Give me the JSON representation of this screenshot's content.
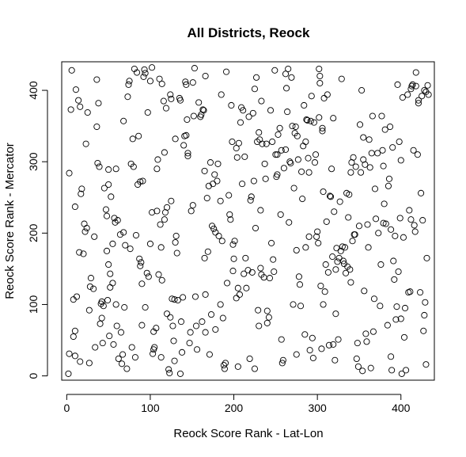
{
  "chart_data": {
    "type": "scatter",
    "title": "All Districts, Reock",
    "xlabel": "Reock Score Rank - Lat-Lon",
    "ylabel": "Reock Score Rank - Mercator",
    "xlim": [
      -6,
      440
    ],
    "ylim": [
      -6,
      440
    ],
    "xticks": [
      0,
      100,
      200,
      300,
      400
    ],
    "yticks": [
      0,
      100,
      200,
      300,
      400
    ],
    "marker": "open-circle",
    "grid": false,
    "legend": "none",
    "colors": {
      "points": "#000000",
      "axes": "#000000",
      "background": "#ffffff"
    },
    "points": [
      [
        2,
        3
      ],
      [
        3,
        31
      ],
      [
        3,
        284
      ],
      [
        5,
        373
      ],
      [
        6,
        428
      ],
      [
        8,
        107
      ],
      [
        8,
        55
      ],
      [
        10,
        63
      ],
      [
        10,
        28
      ],
      [
        10,
        237
      ],
      [
        11,
        401
      ],
      [
        12,
        111
      ],
      [
        14,
        386
      ],
      [
        15,
        173
      ],
      [
        16,
        20
      ],
      [
        16,
        377
      ],
      [
        17,
        255
      ],
      [
        18,
        262
      ],
      [
        20,
        171
      ],
      [
        21,
        213
      ],
      [
        22,
        202
      ],
      [
        23,
        325
      ],
      [
        24,
        207
      ],
      [
        25,
        369
      ],
      [
        27,
        18
      ],
      [
        27,
        92
      ],
      [
        28,
        125
      ],
      [
        29,
        137
      ],
      [
        32,
        122
      ],
      [
        33,
        195
      ],
      [
        34,
        40
      ],
      [
        36,
        415
      ],
      [
        36,
        349
      ],
      [
        37,
        298
      ],
      [
        38,
        382
      ],
      [
        39,
        293
      ],
      [
        40,
        73
      ],
      [
        41,
        101
      ],
      [
        42,
        104
      ],
      [
        42,
        81
      ],
      [
        43,
        46
      ],
      [
        44,
        98
      ],
      [
        45,
        263
      ],
      [
        47,
        233
      ],
      [
        48,
        224
      ],
      [
        48,
        175
      ],
      [
        49,
        106
      ],
      [
        50,
        289
      ],
      [
        50,
        156
      ],
      [
        50,
        268
      ],
      [
        51,
        56
      ],
      [
        52,
        143
      ],
      [
        52,
        124
      ],
      [
        53,
        251
      ],
      [
        55,
        185
      ],
      [
        55,
        130
      ],
      [
        56,
        44
      ],
      [
        57,
        221
      ],
      [
        58,
        215
      ],
      [
        59,
        290
      ],
      [
        59,
        100
      ],
      [
        60,
        70
      ],
      [
        61,
        218
      ],
      [
        62,
        24
      ],
      [
        64,
        198
      ],
      [
        65,
        61
      ],
      [
        66,
        17
      ],
      [
        67,
        30
      ],
      [
        68,
        357
      ],
      [
        68,
        201
      ],
      [
        69,
        96
      ],
      [
        70,
        183
      ],
      [
        72,
        10
      ],
      [
        73,
        391
      ],
      [
        74,
        408
      ],
      [
        75,
        413
      ],
      [
        76,
        178
      ],
      [
        77,
        297
      ],
      [
        78,
        40
      ],
      [
        79,
        332
      ],
      [
        80,
        293
      ],
      [
        81,
        430
      ],
      [
        82,
        26
      ],
      [
        83,
        197
      ],
      [
        84,
        425
      ],
      [
        85,
        268
      ],
      [
        86,
        336
      ],
      [
        87,
        164
      ],
      [
        88,
        154
      ],
      [
        88,
        272
      ],
      [
        89,
        159
      ],
      [
        90,
        71
      ],
      [
        90,
        129
      ],
      [
        91,
        273
      ],
      [
        92,
        419
      ],
      [
        93,
        429
      ],
      [
        94,
        424
      ],
      [
        94,
        96
      ],
      [
        96,
        144
      ],
      [
        97,
        369
      ],
      [
        98,
        139
      ],
      [
        100,
        185
      ],
      [
        100,
        413
      ],
      [
        102,
        229
      ],
      [
        102,
        432
      ],
      [
        103,
        31
      ],
      [
        104,
        62
      ],
      [
        104,
        37
      ],
      [
        105,
        40
      ],
      [
        107,
        67
      ],
      [
        108,
        290
      ],
      [
        108,
        231
      ],
      [
        109,
        303
      ],
      [
        110,
        142
      ],
      [
        111,
        416
      ],
      [
        112,
        212
      ],
      [
        113,
        180
      ],
      [
        113,
        26
      ],
      [
        114,
        134
      ],
      [
        114,
        409
      ],
      [
        116,
        385
      ],
      [
        117,
        313
      ],
      [
        117,
        219
      ],
      [
        118,
        229
      ],
      [
        119,
        375
      ],
      [
        120,
        236
      ],
      [
        120,
        87
      ],
      [
        122,
        9
      ],
      [
        123,
        4
      ],
      [
        124,
        82
      ],
      [
        124,
        394
      ],
      [
        125,
        388
      ],
      [
        125,
        245
      ],
      [
        126,
        108
      ],
      [
        127,
        70
      ],
      [
        128,
        49
      ],
      [
        129,
        107
      ],
      [
        129,
        21
      ],
      [
        130,
        332
      ],
      [
        130,
        187
      ],
      [
        131,
        196
      ],
      [
        132,
        172
      ],
      [
        133,
        106
      ],
      [
        135,
        389
      ],
      [
        136,
        3
      ],
      [
        136,
        386
      ],
      [
        137,
        76
      ],
      [
        138,
        33
      ],
      [
        139,
        110
      ],
      [
        140,
        323
      ],
      [
        141,
        336
      ],
      [
        142,
        412
      ],
      [
        143,
        408
      ],
      [
        143,
        337
      ],
      [
        144,
        359
      ],
      [
        145,
        312
      ],
      [
        145,
        308
      ],
      [
        147,
        46
      ],
      [
        148,
        61
      ],
      [
        149,
        231
      ],
      [
        151,
        239
      ],
      [
        151,
        411
      ],
      [
        152,
        364
      ],
      [
        153,
        431
      ],
      [
        154,
        111
      ],
      [
        155,
        70
      ],
      [
        156,
        37
      ],
      [
        158,
        383
      ],
      [
        160,
        363
      ],
      [
        161,
        366
      ],
      [
        162,
        76
      ],
      [
        163,
        373
      ],
      [
        164,
        372
      ],
      [
        165,
        165
      ],
      [
        165,
        287
      ],
      [
        166,
        420
      ],
      [
        166,
        61
      ],
      [
        166,
        114
      ],
      [
        168,
        249
      ],
      [
        169,
        174
      ],
      [
        170,
        266
      ],
      [
        171,
        30
      ],
      [
        172,
        299
      ],
      [
        173,
        86
      ],
      [
        174,
        210
      ],
      [
        175,
        269
      ],
      [
        176,
        206
      ],
      [
        177,
        282
      ],
      [
        178,
        65
      ],
      [
        178,
        201
      ],
      [
        180,
        273
      ],
      [
        181,
        297
      ],
      [
        182,
        196
      ],
      [
        184,
        100
      ],
      [
        184,
        245
      ],
      [
        185,
        394
      ],
      [
        186,
        189
      ],
      [
        187,
        81
      ],
      [
        188,
        15
      ],
      [
        189,
        10
      ],
      [
        190,
        18
      ],
      [
        191,
        426
      ],
      [
        192,
        130
      ],
      [
        194,
        253
      ],
      [
        195,
        226
      ],
      [
        196,
        219
      ],
      [
        197,
        379
      ],
      [
        198,
        328
      ],
      [
        199,
        147
      ],
      [
        199,
        184
      ],
      [
        200,
        164
      ],
      [
        201,
        189
      ],
      [
        203,
        319
      ],
      [
        203,
        109
      ],
      [
        204,
        306
      ],
      [
        205,
        13
      ],
      [
        205,
        123
      ],
      [
        206,
        326
      ],
      [
        207,
        114
      ],
      [
        208,
        355
      ],
      [
        209,
        376
      ],
      [
        210,
        269
      ],
      [
        211,
        372
      ],
      [
        212,
        143
      ],
      [
        213,
        307
      ],
      [
        214,
        165
      ],
      [
        215,
        123
      ],
      [
        217,
        148
      ],
      [
        218,
        363
      ],
      [
        219,
        24
      ],
      [
        220,
        246
      ],
      [
        221,
        251
      ],
      [
        222,
        145
      ],
      [
        223,
        368
      ],
      [
        224,
        273
      ],
      [
        225,
        10
      ],
      [
        225,
        402
      ],
      [
        226,
        207
      ],
      [
        227,
        418
      ],
      [
        228,
        328
      ],
      [
        229,
        92
      ],
      [
        230,
        70
      ],
      [
        230,
        341
      ],
      [
        231,
        331
      ],
      [
        232,
        232
      ],
      [
        232,
        151
      ],
      [
        233,
        385
      ],
      [
        233,
        142
      ],
      [
        234,
        325
      ],
      [
        236,
        138
      ],
      [
        237,
        297
      ],
      [
        238,
        276
      ],
      [
        239,
        325
      ],
      [
        240,
        74
      ],
      [
        240,
        91
      ],
      [
        242,
        82
      ],
      [
        243,
        137
      ],
      [
        244,
        372
      ],
      [
        245,
        186
      ],
      [
        246,
        328
      ],
      [
        247,
        163
      ],
      [
        248,
        146
      ],
      [
        249,
        428
      ],
      [
        250,
        310
      ],
      [
        251,
        279
      ],
      [
        252,
        282
      ],
      [
        252,
        310
      ],
      [
        253,
        338
      ],
      [
        255,
        347
      ],
      [
        256,
        226
      ],
      [
        257,
        51
      ],
      [
        257,
        316
      ],
      [
        258,
        18
      ],
      [
        259,
        22
      ],
      [
        260,
        291
      ],
      [
        262,
        423
      ],
      [
        262,
        317
      ],
      [
        263,
        403
      ],
      [
        264,
        370
      ],
      [
        265,
        430
      ],
      [
        266,
        215
      ],
      [
        267,
        300
      ],
      [
        268,
        298
      ],
      [
        269,
        418
      ],
      [
        270,
        350
      ],
      [
        271,
        100
      ],
      [
        272,
        263
      ],
      [
        273,
        340
      ],
      [
        274,
        349
      ],
      [
        275,
        30
      ],
      [
        275,
        176
      ],
      [
        276,
        336
      ],
      [
        277,
        303
      ],
      [
        278,
        139
      ],
      [
        279,
        128
      ],
      [
        280,
        98
      ],
      [
        281,
        286
      ],
      [
        282,
        248
      ],
      [
        283,
        322
      ],
      [
        284,
        379
      ],
      [
        285,
        58
      ],
      [
        286,
        328
      ],
      [
        286,
        180
      ],
      [
        287,
        359
      ],
      [
        288,
        358
      ],
      [
        289,
        305
      ],
      [
        290,
        195
      ],
      [
        290,
        285
      ],
      [
        291,
        36
      ],
      [
        292,
        357
      ],
      [
        293,
        392
      ],
      [
        294,
        53
      ],
      [
        295,
        25
      ],
      [
        296,
        355
      ],
      [
        297,
        299
      ],
      [
        298,
        310
      ],
      [
        299,
        195
      ],
      [
        300,
        202
      ],
      [
        301,
        186
      ],
      [
        302,
        362
      ],
      [
        302,
        430
      ],
      [
        303,
        410
      ],
      [
        303,
        420
      ],
      [
        304,
        126
      ],
      [
        305,
        38
      ],
      [
        306,
        347
      ],
      [
        306,
        343
      ],
      [
        307,
        100
      ],
      [
        307,
        258
      ],
      [
        308,
        389
      ],
      [
        309,
        118
      ],
      [
        310,
        156
      ],
      [
        311,
        216
      ],
      [
        312,
        394
      ],
      [
        313,
        145
      ],
      [
        314,
        43
      ],
      [
        315,
        252
      ],
      [
        316,
        251
      ],
      [
        317,
        290
      ],
      [
        318,
        167
      ],
      [
        319,
        361
      ],
      [
        319,
        44
      ],
      [
        320,
        230
      ],
      [
        321,
        22
      ],
      [
        322,
        149
      ],
      [
        322,
        87
      ],
      [
        323,
        179
      ],
      [
        324,
        160
      ],
      [
        325,
        51
      ],
      [
        326,
        165
      ],
      [
        327,
        244
      ],
      [
        328,
        175
      ],
      [
        329,
        416
      ],
      [
        330,
        181
      ],
      [
        331,
        161
      ],
      [
        332,
        157
      ],
      [
        333,
        180
      ],
      [
        334,
        144
      ],
      [
        335,
        256
      ],
      [
        336,
        153
      ],
      [
        337,
        222
      ],
      [
        338,
        254
      ],
      [
        339,
        149
      ],
      [
        340,
        285
      ],
      [
        340,
        131
      ],
      [
        341,
        299
      ],
      [
        342,
        189
      ],
      [
        343,
        306
      ],
      [
        344,
        198
      ],
      [
        345,
        198
      ],
      [
        346,
        293
      ],
      [
        347,
        24
      ],
      [
        348,
        46
      ],
      [
        349,
        13
      ],
      [
        350,
        210
      ],
      [
        351,
        352
      ],
      [
        352,
        285
      ],
      [
        353,
        400
      ],
      [
        354,
        7
      ],
      [
        355,
        334
      ],
      [
        355,
        303
      ],
      [
        356,
        119
      ],
      [
        357,
        296
      ],
      [
        358,
        59
      ],
      [
        359,
        48
      ],
      [
        360,
        212
      ],
      [
        361,
        180
      ],
      [
        362,
        331
      ],
      [
        363,
        292
      ],
      [
        364,
        11
      ],
      [
        365,
        312
      ],
      [
        366,
        364
      ],
      [
        367,
        62
      ],
      [
        368,
        108
      ],
      [
        369,
        262
      ],
      [
        370,
        220
      ],
      [
        372,
        312
      ],
      [
        373,
        200
      ],
      [
        375,
        98
      ],
      [
        376,
        156
      ],
      [
        377,
        364
      ],
      [
        378,
        316
      ],
      [
        379,
        214
      ],
      [
        379,
        294
      ],
      [
        380,
        241
      ],
      [
        381,
        345
      ],
      [
        382,
        213
      ],
      [
        384,
        71
      ],
      [
        385,
        266
      ],
      [
        386,
        276
      ],
      [
        387,
        349
      ],
      [
        388,
        205
      ],
      [
        388,
        27
      ],
      [
        389,
        8
      ],
      [
        390,
        320
      ],
      [
        391,
        161
      ],
      [
        392,
        135
      ],
      [
        393,
        196
      ],
      [
        394,
        79
      ],
      [
        395,
        97
      ],
      [
        396,
        408
      ],
      [
        397,
        146
      ],
      [
        398,
        328
      ],
      [
        399,
        221
      ],
      [
        400,
        302
      ],
      [
        400,
        80
      ],
      [
        401,
        3
      ],
      [
        402,
        390
      ],
      [
        403,
        194
      ],
      [
        404,
        54
      ],
      [
        405,
        95
      ],
      [
        406,
        8
      ],
      [
        408,
        394
      ],
      [
        409,
        117
      ],
      [
        410,
        232
      ],
      [
        411,
        118
      ],
      [
        412,
        402
      ],
      [
        412,
        219
      ],
      [
        413,
        406
      ],
      [
        414,
        408
      ],
      [
        415,
        316
      ],
      [
        416,
        211
      ],
      [
        417,
        202
      ],
      [
        418,
        406
      ],
      [
        418,
        425
      ],
      [
        420,
        310
      ],
      [
        421,
        382
      ],
      [
        421,
        386
      ],
      [
        423,
        117
      ],
      [
        424,
        256
      ],
      [
        425,
        392
      ],
      [
        426,
        218
      ],
      [
        427,
        63
      ],
      [
        428,
        400
      ],
      [
        428,
        85
      ],
      [
        429,
        103
      ],
      [
        430,
        398
      ],
      [
        430,
        16
      ],
      [
        431,
        165
      ],
      [
        432,
        407
      ],
      [
        433,
        394
      ]
    ]
  }
}
